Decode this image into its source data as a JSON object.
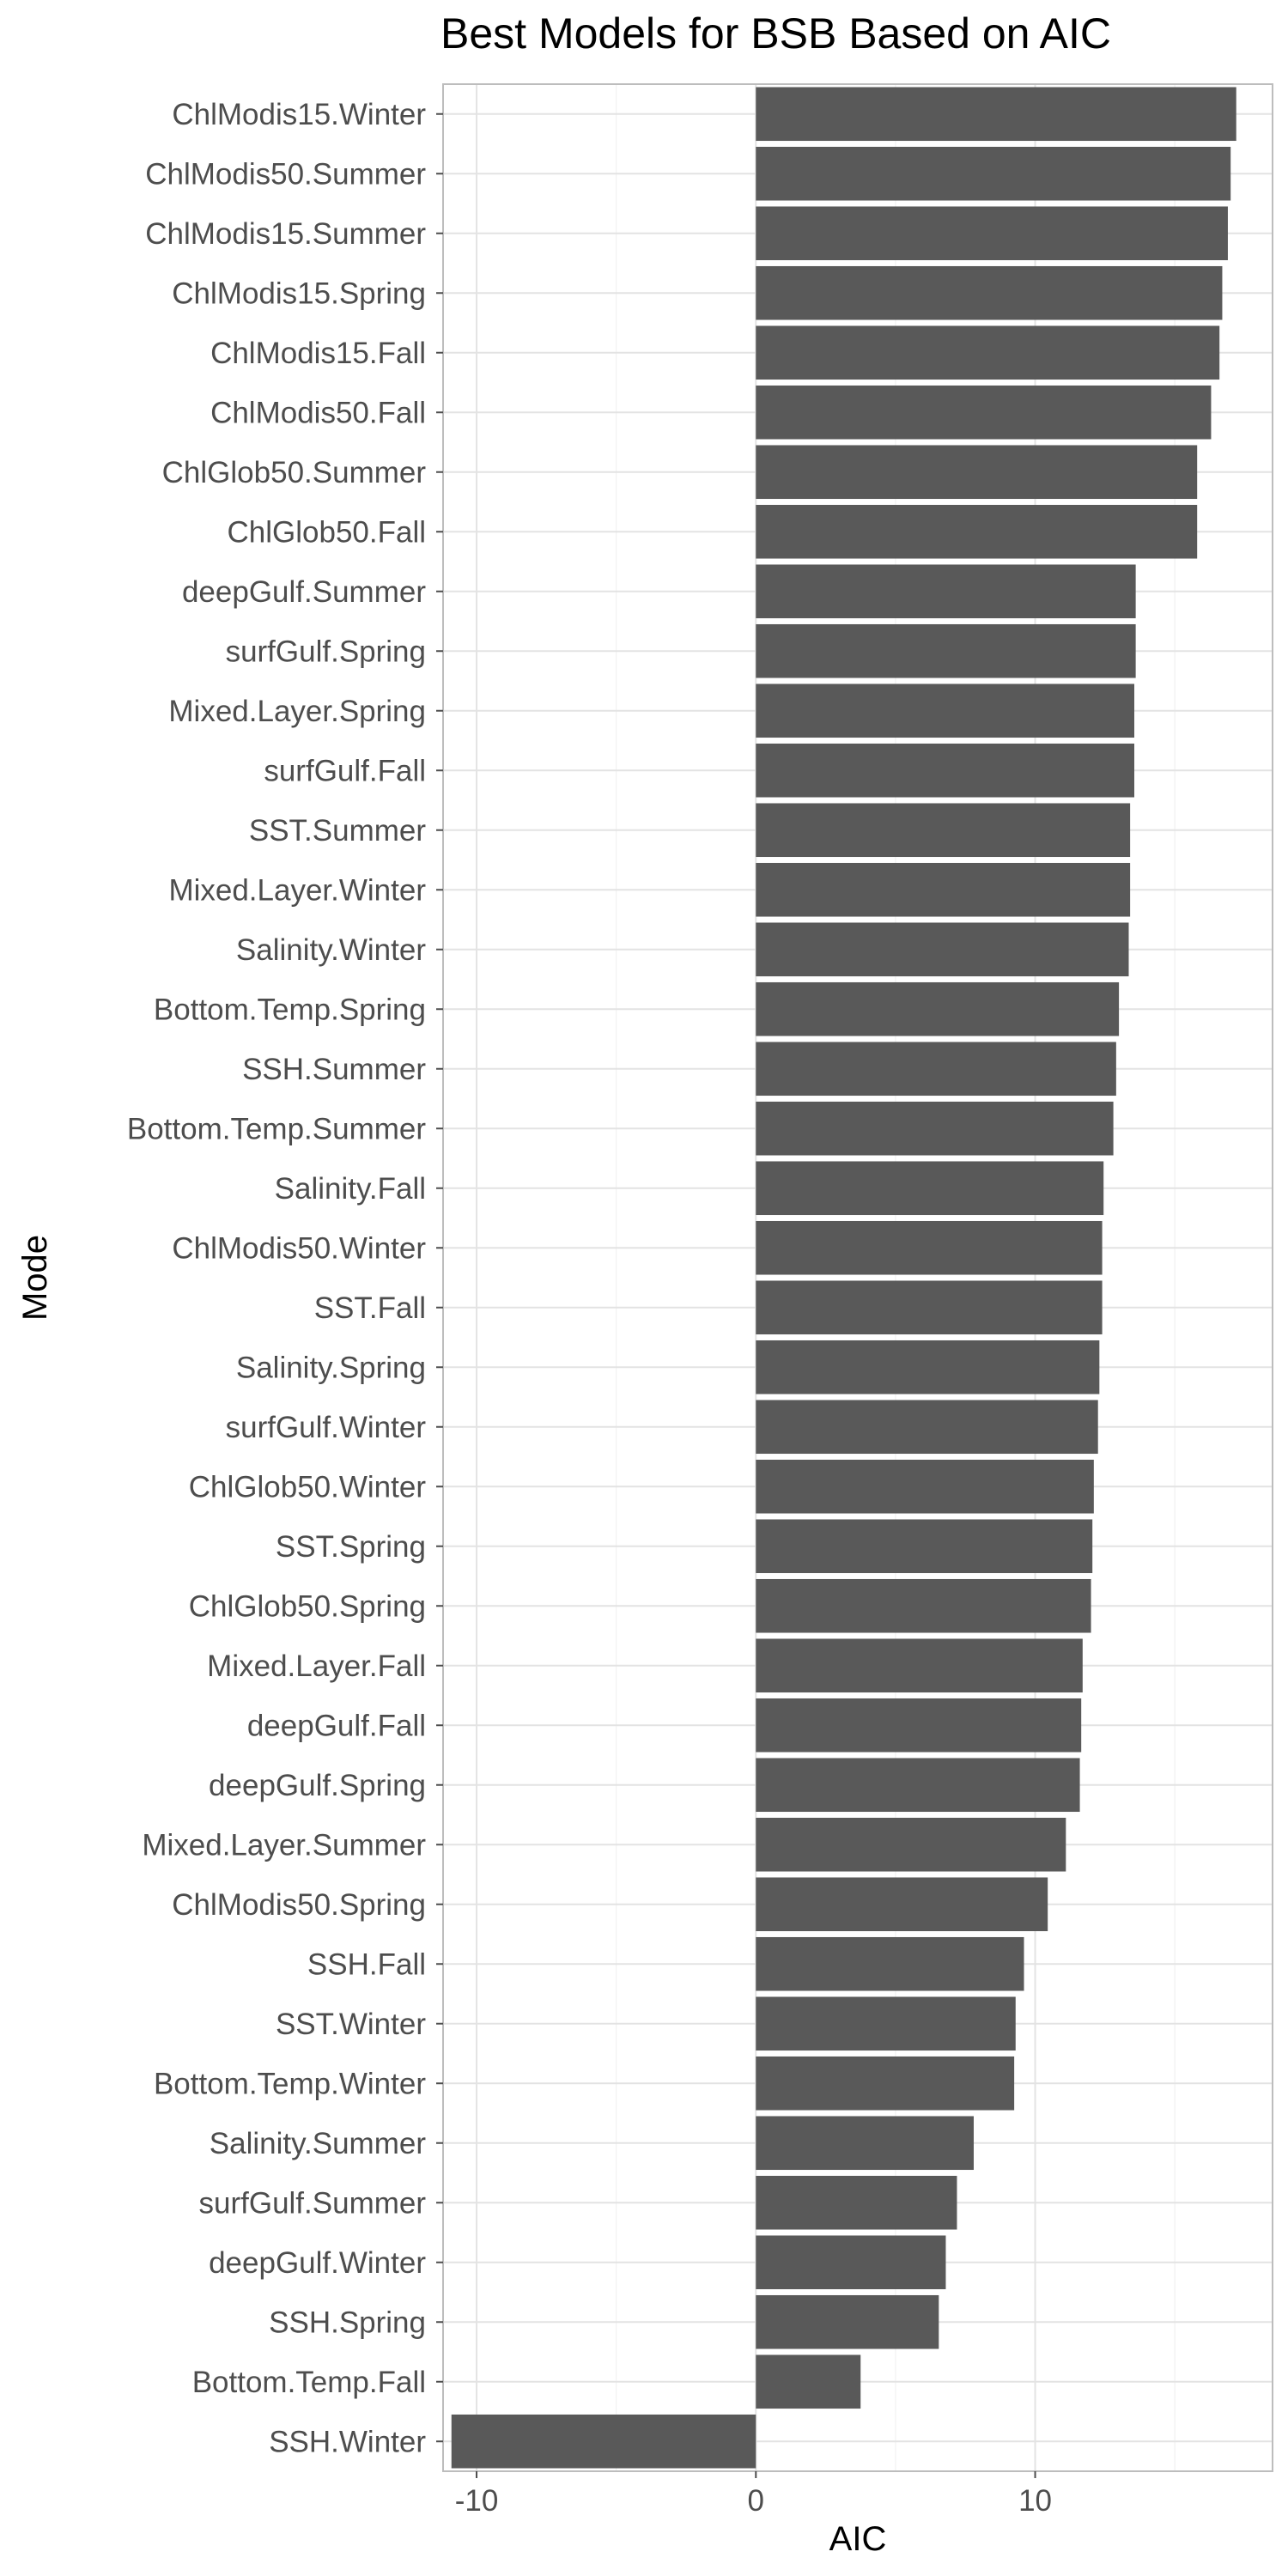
{
  "chart_data": {
    "type": "bar",
    "orientation": "horizontal",
    "title": "Best Models for BSB Based on AIC",
    "xlabel": "AIC",
    "ylabel": "Mode",
    "xlim": [
      -11.2,
      18.5
    ],
    "xticks": [
      -10,
      0,
      10
    ],
    "grid": true,
    "bar_color": "#595959",
    "categories": [
      "ChlModis15.Winter",
      "ChlModis50.Summer",
      "ChlModis15.Summer",
      "ChlModis15.Spring",
      "ChlModis15.Fall",
      "ChlModis50.Fall",
      "ChlGlob50.Summer",
      "ChlGlob50.Fall",
      "deepGulf.Summer",
      "surfGulf.Spring",
      "Mixed.Layer.Spring",
      "surfGulf.Fall",
      "SST.Summer",
      "Mixed.Layer.Winter",
      "Salinity.Winter",
      "Bottom.Temp.Spring",
      "SSH.Summer",
      "Bottom.Temp.Summer",
      "Salinity.Fall",
      "ChlModis50.Winter",
      "SST.Fall",
      "Salinity.Spring",
      "surfGulf.Winter",
      "ChlGlob50.Winter",
      "SST.Spring",
      "ChlGlob50.Spring",
      "Mixed.Layer.Fall",
      "deepGulf.Fall",
      "deepGulf.Spring",
      "Mixed.Layer.Summer",
      "ChlModis50.Spring",
      "SSH.Fall",
      "SST.Winter",
      "Bottom.Temp.Winter",
      "Salinity.Summer",
      "surfGulf.Summer",
      "deepGulf.Winter",
      "SSH.Spring",
      "Bottom.Temp.Fall",
      "SSH.Winter"
    ],
    "values": [
      17.2,
      17.0,
      16.9,
      16.7,
      16.6,
      16.3,
      15.8,
      15.8,
      13.6,
      13.6,
      13.55,
      13.55,
      13.4,
      13.4,
      13.35,
      13.0,
      12.9,
      12.8,
      12.45,
      12.4,
      12.4,
      12.3,
      12.25,
      12.1,
      12.05,
      12.0,
      11.7,
      11.65,
      11.6,
      11.1,
      10.45,
      9.6,
      9.3,
      9.25,
      7.8,
      7.2,
      6.8,
      6.55,
      3.75,
      -10.9
    ]
  }
}
